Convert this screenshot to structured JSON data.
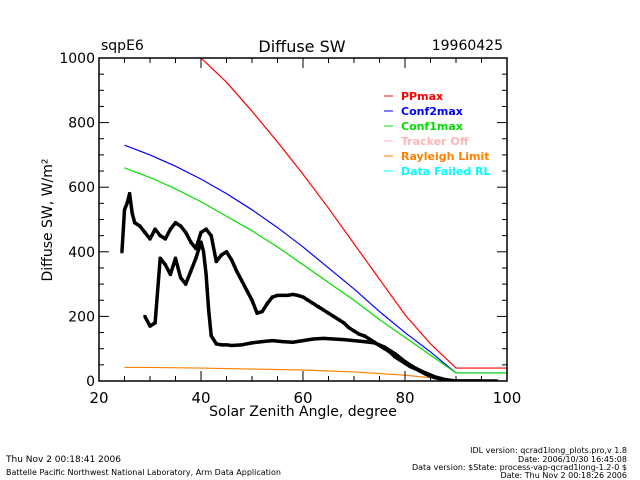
{
  "header": {
    "site": "sqpE6",
    "title": "Diffuse SW",
    "date": "19960425"
  },
  "footer": {
    "left_line1": "Thu Nov  2 00:18:41 2006",
    "left_line2": "Battelle Pacific Northwest National Laboratory, Arm Data Application",
    "right_line1": "IDL version: qcrad1long_plots.pro,v 1.8",
    "right_line2": "Date: 2006/10/30 16:45:08",
    "right_line3": "Data version: $State: process-vap-qcrad1long-1.2-0 $",
    "right_line4": "Date: Thu Nov  2 00:18:26 2006"
  },
  "chart_data": {
    "type": "scatter",
    "title": "Diffuse SW",
    "xlabel": "Solar Zenith Angle, degree",
    "ylabel": "Diffuse SW, W/m²",
    "xlim": [
      20,
      100
    ],
    "ylim": [
      0,
      1000
    ],
    "xticks": [
      "20",
      "40",
      "60",
      "80",
      "100"
    ],
    "yticks": [
      "0",
      "200",
      "400",
      "600",
      "800",
      "1000"
    ],
    "legend_position": "top-right",
    "series": [
      {
        "name": "PPmax",
        "color": "#ff0000",
        "kind": "line",
        "x": [
          40,
          45,
          50,
          55,
          60,
          65,
          70,
          75,
          80,
          85,
          90,
          100
        ],
        "y": [
          1000,
          925,
          835,
          740,
          640,
          535,
          425,
          315,
          205,
          115,
          40,
          40
        ]
      },
      {
        "name": "Conf2max",
        "color": "#0000ff",
        "kind": "line",
        "x": [
          25,
          30,
          35,
          40,
          45,
          50,
          55,
          60,
          65,
          70,
          75,
          80,
          85,
          90,
          100
        ],
        "y": [
          730,
          700,
          665,
          625,
          580,
          530,
          475,
          415,
          350,
          285,
          215,
          150,
          90,
          25,
          25
        ]
      },
      {
        "name": "Conf1max",
        "color": "#00dd00",
        "kind": "line",
        "x": [
          25,
          30,
          35,
          40,
          45,
          50,
          55,
          60,
          65,
          70,
          75,
          80,
          85,
          90,
          100
        ],
        "y": [
          660,
          630,
          595,
          555,
          510,
          465,
          415,
          360,
          305,
          250,
          190,
          135,
          80,
          25,
          25
        ]
      },
      {
        "name": "Tracker Off",
        "color": "#ffb6b6",
        "kind": "line",
        "x": [],
        "y": []
      },
      {
        "name": "Rayleigh Limit",
        "color": "#ff8000",
        "kind": "line",
        "x": [
          25,
          30,
          40,
          50,
          60,
          70,
          80,
          85,
          90,
          100
        ],
        "y": [
          42,
          42,
          40,
          37,
          34,
          28,
          18,
          10,
          0,
          0
        ]
      },
      {
        "name": "Data Failed RL",
        "color": "#00ffff",
        "kind": "line",
        "x": [],
        "y": []
      },
      {
        "name": "Diffuse SW (upper)",
        "color": "#000000",
        "kind": "points",
        "x": [
          24.5,
          25,
          25.5,
          26,
          26.5,
          27,
          28,
          29,
          30,
          31,
          32,
          33,
          34,
          35,
          36,
          37,
          38,
          39,
          40,
          41,
          42,
          43,
          44,
          45,
          46,
          47,
          48,
          49,
          50,
          51,
          52,
          53,
          54,
          55,
          56,
          57,
          58,
          59,
          60,
          61,
          62,
          63,
          64,
          65,
          66,
          67,
          68,
          69,
          70,
          71,
          72,
          73,
          74,
          75,
          76,
          77,
          78,
          79,
          80,
          81,
          82,
          83,
          84,
          85,
          86,
          87,
          88,
          89,
          90,
          92,
          95,
          98
        ],
        "y": [
          400,
          530,
          550,
          580,
          520,
          490,
          480,
          460,
          440,
          470,
          450,
          440,
          470,
          490,
          480,
          460,
          430,
          410,
          460,
          470,
          450,
          370,
          390,
          400,
          375,
          340,
          310,
          280,
          250,
          210,
          215,
          240,
          260,
          265,
          265,
          265,
          268,
          265,
          260,
          250,
          240,
          230,
          220,
          210,
          200,
          190,
          180,
          165,
          155,
          145,
          140,
          130,
          120,
          110,
          100,
          90,
          75,
          65,
          55,
          45,
          38,
          30,
          22,
          15,
          10,
          6,
          3,
          1,
          0,
          0,
          0,
          0
        ]
      },
      {
        "name": "Diffuse SW (lower)",
        "color": "#000000",
        "kind": "points",
        "x": [
          29,
          30,
          31,
          32,
          33,
          34,
          35,
          36,
          37,
          38,
          39,
          40,
          40.5,
          41,
          41.5,
          42,
          43,
          44,
          45,
          46,
          48,
          50,
          52,
          54,
          56,
          58,
          60,
          62,
          64,
          66,
          68,
          70,
          72,
          74,
          76,
          78,
          80,
          82,
          84,
          86,
          88,
          90,
          95
        ],
        "y": [
          200,
          170,
          180,
          380,
          360,
          330,
          380,
          320,
          300,
          340,
          380,
          430,
          400,
          330,
          220,
          140,
          115,
          112,
          112,
          110,
          112,
          118,
          122,
          125,
          122,
          120,
          125,
          130,
          132,
          130,
          128,
          125,
          122,
          118,
          105,
          85,
          60,
          40,
          25,
          12,
          4,
          0,
          0
        ]
      }
    ]
  }
}
